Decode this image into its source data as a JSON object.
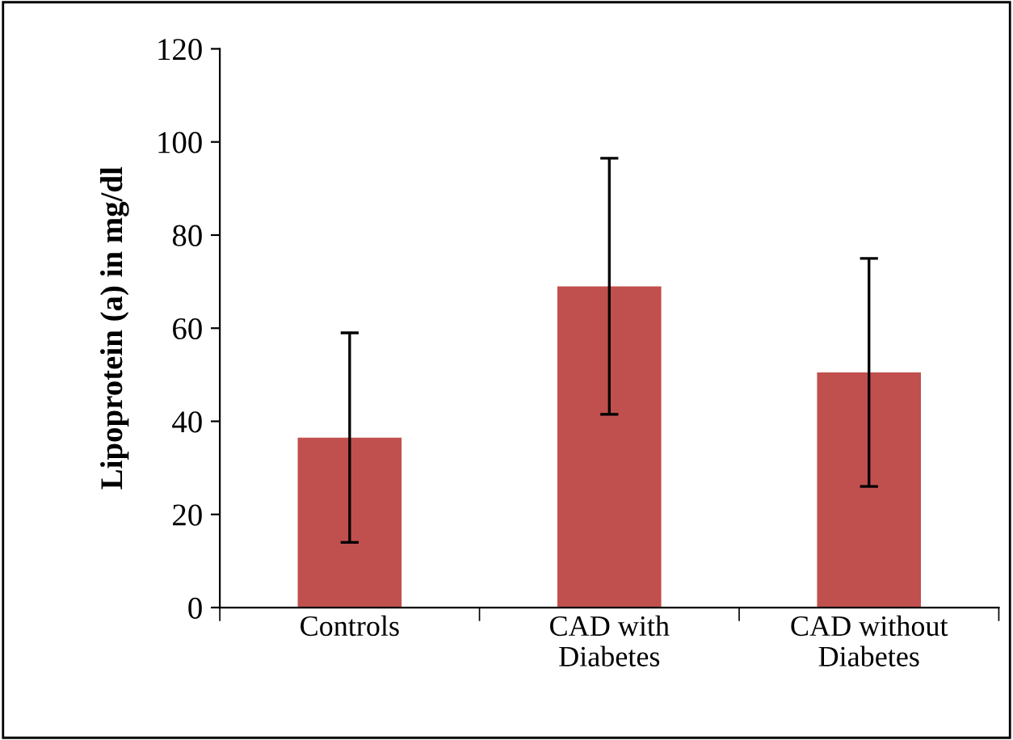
{
  "chart_data": {
    "type": "bar",
    "ylabel": "Lipoprotein (a) in mg/dl",
    "categories": [
      "Controls",
      "CAD with Diabetes",
      "CAD without Diabetes"
    ],
    "values": [
      36.5,
      69,
      50.5
    ],
    "errors": [
      22.5,
      27.5,
      24.5
    ],
    "color": "#c0504d",
    "ylim": [
      0,
      120
    ],
    "yticks": [
      0,
      20,
      40,
      60,
      80,
      100,
      120
    ],
    "grid": false,
    "legend": false
  }
}
